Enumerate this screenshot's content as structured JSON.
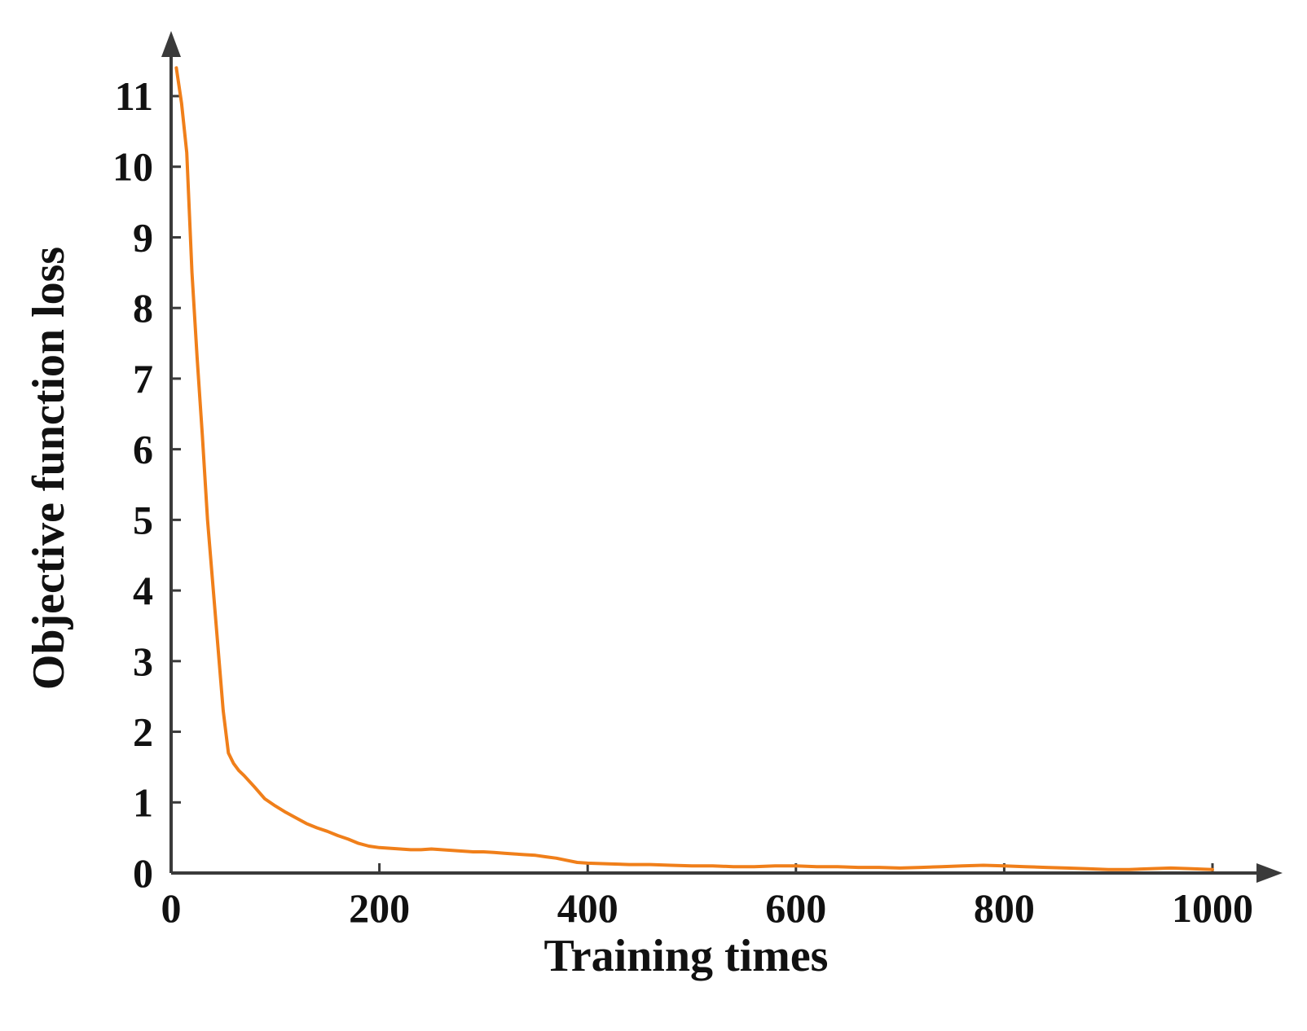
{
  "chart_data": {
    "type": "line",
    "xlabel": "Training times",
    "ylabel": "Objective function loss",
    "xlim": [
      0,
      1000
    ],
    "ylim": [
      0,
      11.5
    ],
    "x_ticks": [
      "0",
      "200",
      "400",
      "600",
      "800",
      "1000"
    ],
    "y_ticks": [
      "0",
      "1",
      "2",
      "3",
      "4",
      "5",
      "6",
      "7",
      "8",
      "9",
      "10",
      "11"
    ],
    "grid": false,
    "legend": "none",
    "series": [
      {
        "color": "#F07F1A",
        "x": [
          5,
          10,
          15,
          20,
          25,
          30,
          35,
          40,
          45,
          50,
          55,
          60,
          65,
          70,
          80,
          90,
          100,
          110,
          120,
          130,
          140,
          150,
          160,
          170,
          180,
          190,
          200,
          210,
          220,
          230,
          240,
          250,
          260,
          270,
          280,
          290,
          300,
          310,
          320,
          330,
          340,
          350,
          360,
          370,
          380,
          390,
          400,
          420,
          440,
          460,
          480,
          500,
          520,
          540,
          560,
          580,
          600,
          620,
          640,
          660,
          680,
          700,
          720,
          740,
          760,
          780,
          800,
          820,
          840,
          860,
          880,
          900,
          920,
          940,
          960,
          980,
          1000
        ],
        "y": [
          11.4,
          10.9,
          10.2,
          8.5,
          7.3,
          6.2,
          5.0,
          4.1,
          3.2,
          2.3,
          1.7,
          1.55,
          1.45,
          1.38,
          1.22,
          1.05,
          0.95,
          0.86,
          0.78,
          0.7,
          0.64,
          0.59,
          0.53,
          0.48,
          0.42,
          0.38,
          0.36,
          0.35,
          0.34,
          0.33,
          0.33,
          0.34,
          0.33,
          0.32,
          0.31,
          0.3,
          0.3,
          0.29,
          0.28,
          0.27,
          0.26,
          0.25,
          0.23,
          0.21,
          0.18,
          0.15,
          0.14,
          0.13,
          0.12,
          0.12,
          0.11,
          0.1,
          0.1,
          0.09,
          0.09,
          0.1,
          0.1,
          0.09,
          0.09,
          0.08,
          0.08,
          0.07,
          0.08,
          0.09,
          0.1,
          0.11,
          0.1,
          0.09,
          0.08,
          0.07,
          0.06,
          0.05,
          0.05,
          0.06,
          0.07,
          0.06,
          0.05
        ]
      }
    ]
  }
}
